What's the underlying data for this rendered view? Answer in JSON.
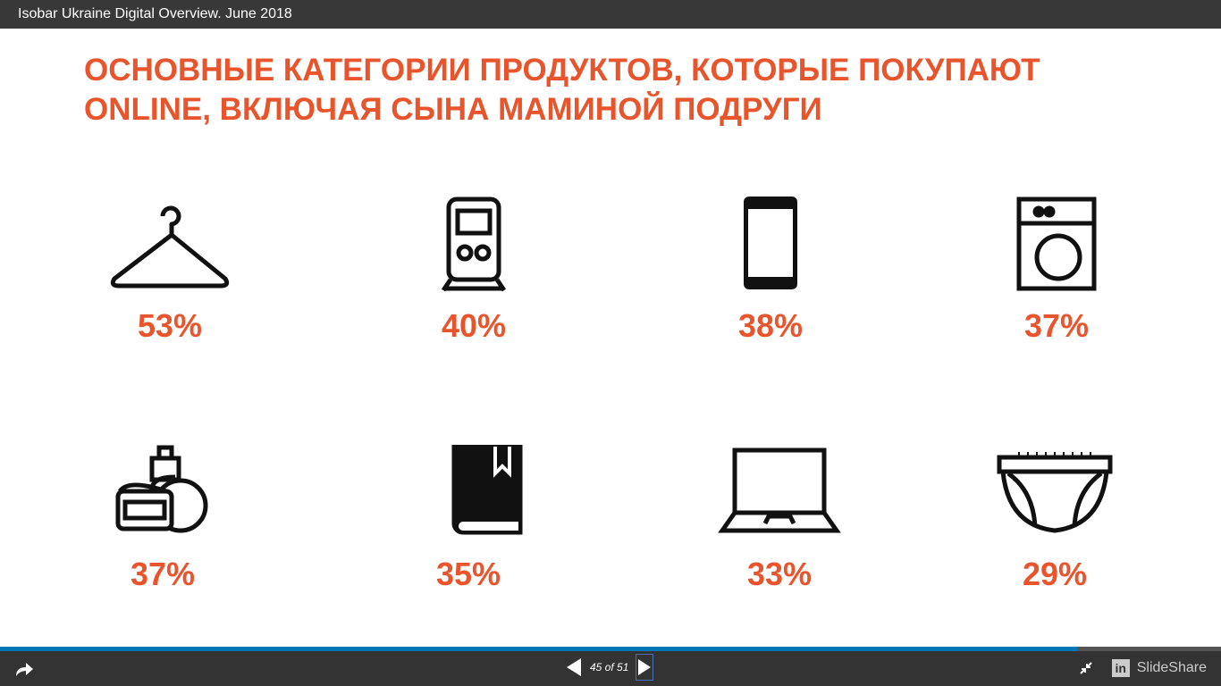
{
  "window_title": "Isobar Ukraine Digital Overview. June 2018",
  "slide": {
    "title_line1": "ОСНОВНЫЕ КАТЕГОРИИ ПРОДУКТОВ, КОТОРЫЕ ПОКУПАЮТ",
    "title_line2": "ONLINE, ВКЛЮЧАЯ СЫНА МАМИНОЙ ПОДРУГИ",
    "accent_color": "#e8552d",
    "categories": [
      {
        "icon": "hanger-icon",
        "value": "53%"
      },
      {
        "icon": "train-icon",
        "value": "40%"
      },
      {
        "icon": "smartphone-icon",
        "value": "38%"
      },
      {
        "icon": "washing-machine-icon",
        "value": "37%"
      },
      {
        "icon": "cosmetics-icon",
        "value": "37%"
      },
      {
        "icon": "book-icon",
        "value": "35%"
      },
      {
        "icon": "laptop-icon",
        "value": "33%"
      },
      {
        "icon": "diaper-icon",
        "value": "29%"
      }
    ]
  },
  "player": {
    "page_indicator": "45 of 51",
    "progress": 0.882,
    "brand": "SlideShare",
    "linkedin_label": "in"
  }
}
